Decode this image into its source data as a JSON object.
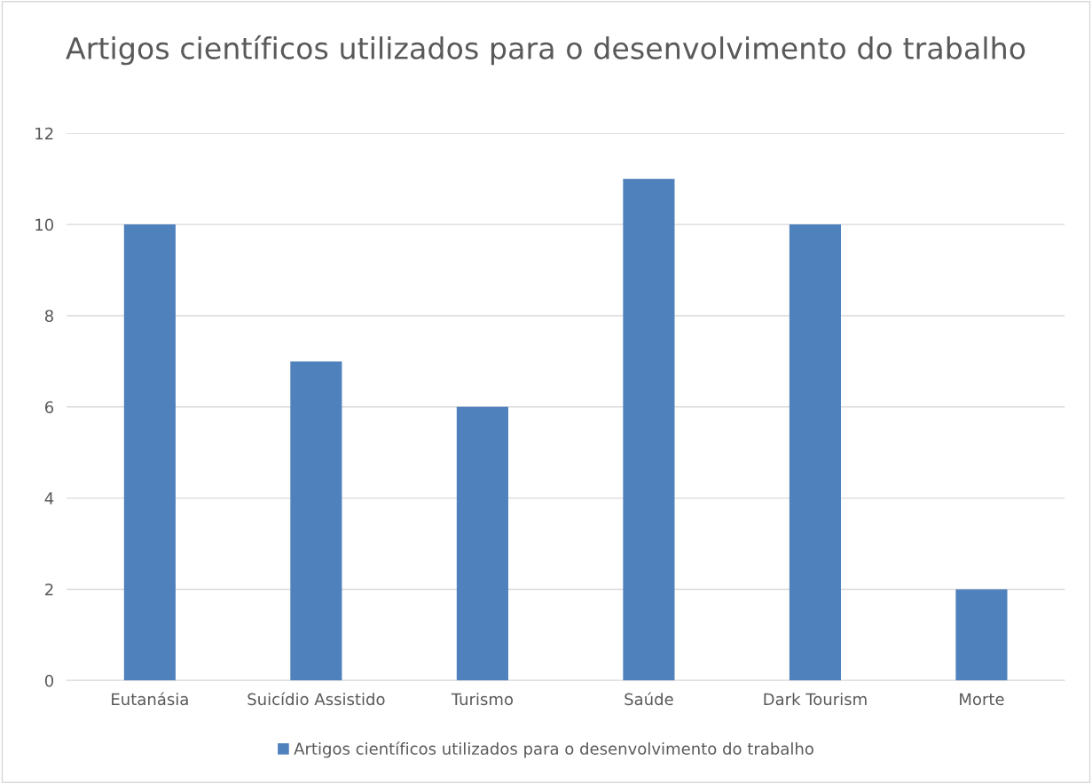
{
  "chart_data": {
    "type": "bar",
    "title": "Artigos científicos utilizados para o desenvolvimento do trabalho",
    "categories": [
      "Eutanásia",
      "Suicídio Assistido",
      "Turismo",
      "Saúde",
      "Dark Tourism",
      "Morte"
    ],
    "series": [
      {
        "name": "Artigos científicos utilizados para o desenvolvimento do trabalho",
        "color": "#4f81bd",
        "values": [
          10,
          7,
          6,
          11,
          10,
          2
        ]
      }
    ],
    "ylim": [
      0,
      12
    ],
    "yticks": [
      0,
      2,
      4,
      6,
      8,
      10,
      12
    ],
    "grid": "y",
    "legend": "bottom"
  }
}
